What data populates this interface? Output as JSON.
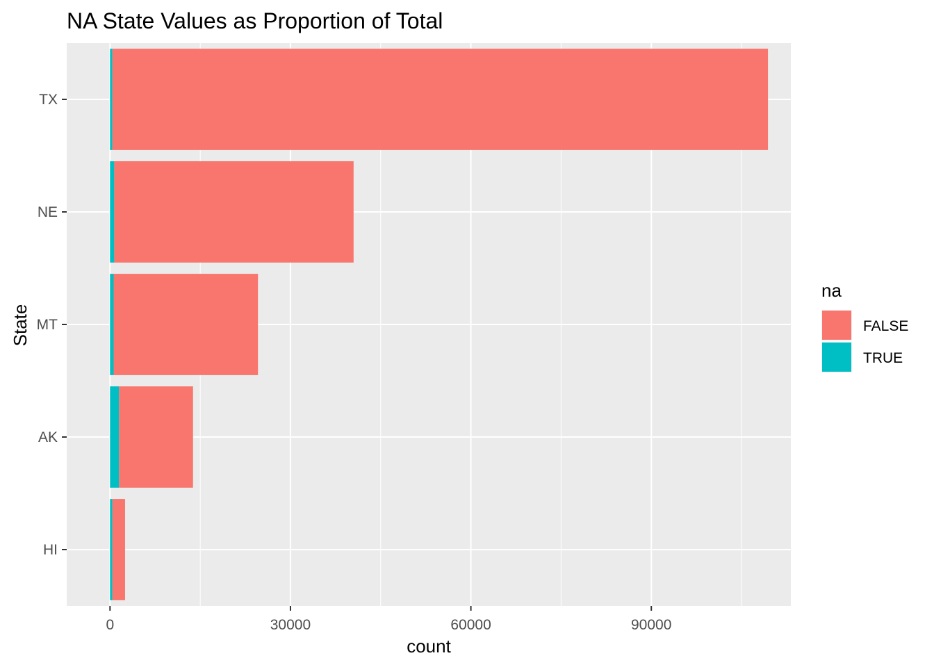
{
  "chart_data": {
    "type": "bar",
    "orientation": "horizontal",
    "stacked": true,
    "title": "NA State Values as Proportion of Total",
    "xlabel": "count",
    "ylabel": "State",
    "xlim": [
      -7200,
      113200
    ],
    "x_ticks": [
      0,
      30000,
      60000,
      90000
    ],
    "x_tick_labels": [
      "0",
      "30000",
      "60000",
      "90000"
    ],
    "categories": [
      "TX",
      "NE",
      "MT",
      "AK",
      "HI"
    ],
    "series": [
      {
        "name": "TRUE",
        "color": "#00BFC4",
        "values": [
          400,
          700,
          600,
          1500,
          400
        ]
      },
      {
        "name": "FALSE",
        "color": "#F8766D",
        "values": [
          109000,
          39800,
          24000,
          12300,
          2100
        ]
      }
    ],
    "legend": {
      "title": "na",
      "placement": "right",
      "entries": [
        "FALSE",
        "TRUE"
      ]
    },
    "grid": true,
    "panel_background": "#EBEBEB",
    "grid_color": "#FFFFFF"
  }
}
